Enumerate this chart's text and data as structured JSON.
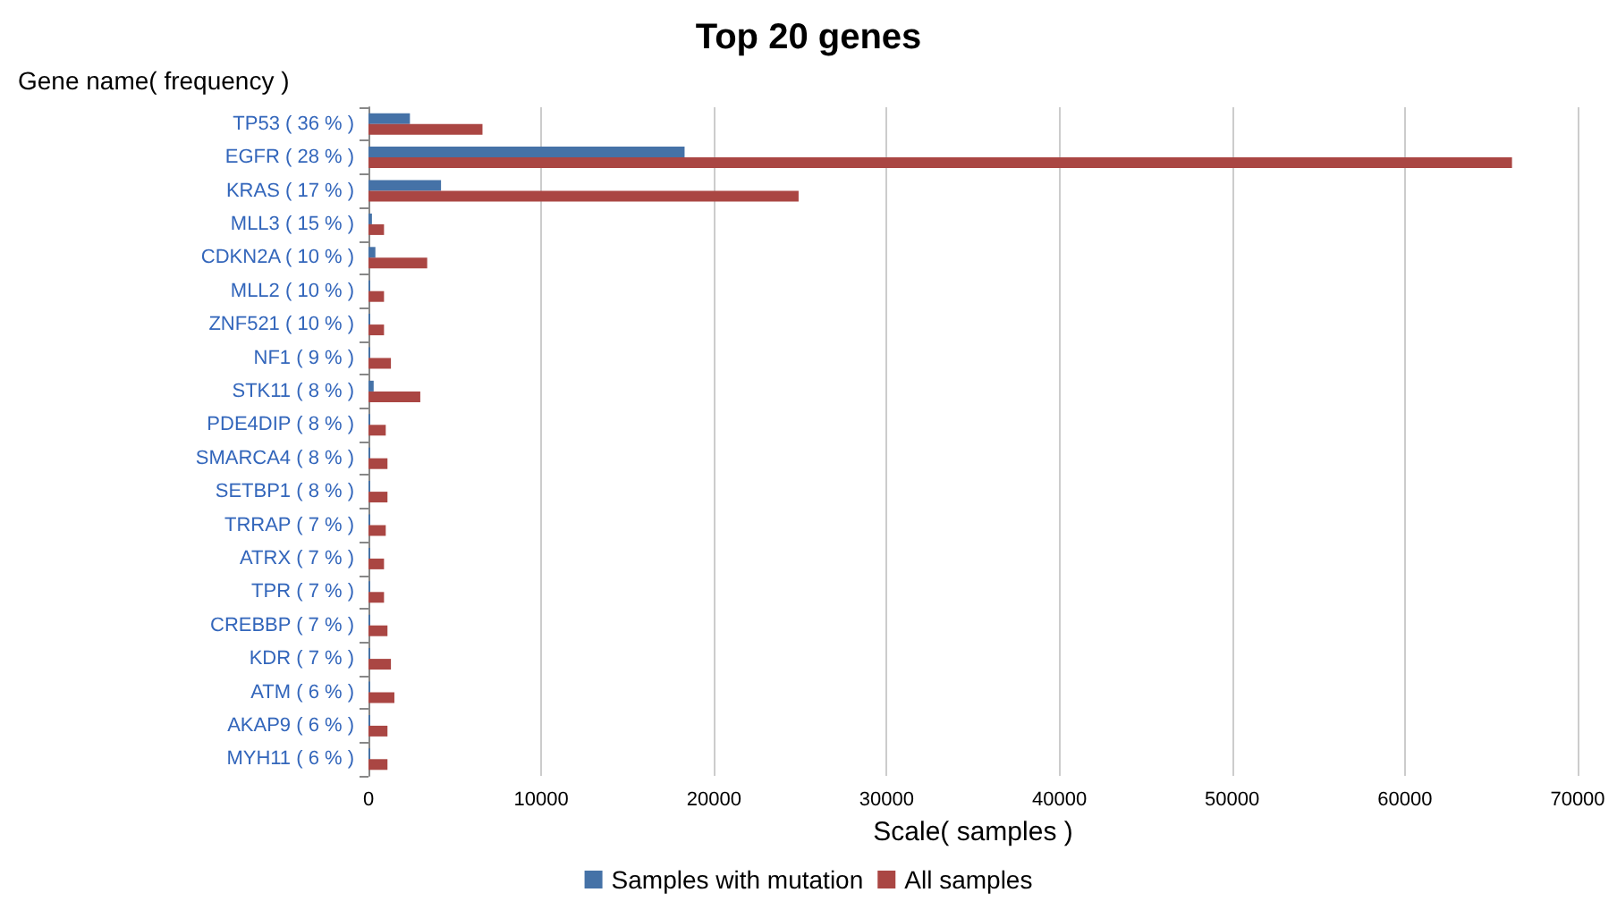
{
  "chart_data": {
    "type": "bar",
    "orientation": "horizontal",
    "title": "Top 20 genes",
    "xlabel": "Scale( samples )",
    "ylabel": "Gene name( frequency )",
    "categories": [
      "TP53 ( 36 % )",
      "EGFR ( 28 % )",
      "KRAS ( 17 % )",
      "MLL3 ( 15 % )",
      "CDKN2A ( 10 % )",
      "MLL2 ( 10 % )",
      "ZNF521 ( 10 % )",
      "NF1 ( 9 % )",
      "STK11 ( 8 % )",
      "PDE4DIP ( 8 % )",
      "SMARCA4 ( 8 % )",
      "SETBP1 ( 8 % )",
      "TRRAP ( 7 % )",
      "ATRX ( 7 % )",
      "TPR ( 7 % )",
      "CREBBP ( 7 % )",
      "KDR ( 7 % )",
      "ATM ( 6 % )",
      "AKAP9 ( 6 % )",
      "MYH11 ( 6 % )"
    ],
    "series": [
      {
        "name": "Samples with mutation",
        "color": "#4572a7",
        "values": [
          2400,
          18300,
          4200,
          200,
          400,
          100,
          100,
          100,
          300,
          100,
          100,
          100,
          100,
          100,
          100,
          100,
          100,
          100,
          100,
          100
        ]
      },
      {
        "name": "All samples",
        "color": "#aa4643",
        "values": [
          6600,
          66200,
          24900,
          900,
          3400,
          900,
          900,
          1300,
          3000,
          1000,
          1100,
          1100,
          1000,
          900,
          900,
          1100,
          1300,
          1500,
          1100,
          1100
        ]
      }
    ],
    "xlim": [
      0,
      70000
    ],
    "xticks": [
      0,
      10000,
      20000,
      30000,
      40000,
      50000,
      60000,
      70000
    ],
    "grid": "x",
    "legend": "bottom"
  }
}
